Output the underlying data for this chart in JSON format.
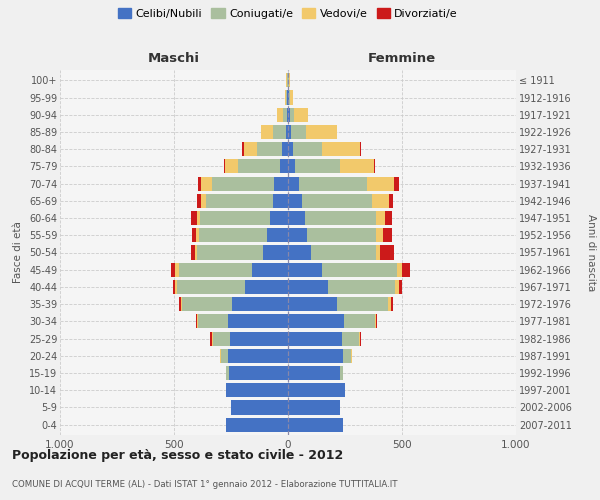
{
  "age_groups": [
    "0-4",
    "5-9",
    "10-14",
    "15-19",
    "20-24",
    "25-29",
    "30-34",
    "35-39",
    "40-44",
    "45-49",
    "50-54",
    "55-59",
    "60-64",
    "65-69",
    "70-74",
    "75-79",
    "80-84",
    "85-89",
    "90-94",
    "95-99",
    "100+"
  ],
  "birth_years": [
    "2007-2011",
    "2002-2006",
    "1997-2001",
    "1992-1996",
    "1987-1991",
    "1982-1986",
    "1977-1981",
    "1972-1976",
    "1967-1971",
    "1962-1966",
    "1957-1961",
    "1952-1956",
    "1947-1951",
    "1942-1946",
    "1937-1941",
    "1932-1936",
    "1927-1931",
    "1922-1926",
    "1917-1921",
    "1912-1916",
    "≤ 1911"
  ],
  "colors": {
    "celibi": "#4472C4",
    "coniugati": "#AABF9E",
    "vedovi": "#F2C96B",
    "divorziati": "#CC1A1A"
  },
  "legend_labels": [
    "Celibi/Nubili",
    "Coniugati/e",
    "Vedovi/e",
    "Divorziati/e"
  ],
  "maschi": {
    "celibi": [
      270,
      250,
      270,
      260,
      265,
      255,
      265,
      245,
      190,
      160,
      110,
      90,
      80,
      65,
      60,
      35,
      25,
      10,
      5,
      3,
      2
    ],
    "coniugati": [
      0,
      0,
      0,
      10,
      30,
      75,
      130,
      220,
      295,
      320,
      290,
      300,
      305,
      295,
      275,
      185,
      110,
      55,
      15,
      4,
      2
    ],
    "vedovi": [
      0,
      0,
      0,
      0,
      5,
      5,
      5,
      5,
      10,
      15,
      10,
      12,
      15,
      20,
      45,
      55,
      60,
      55,
      30,
      8,
      3
    ],
    "divorziati": [
      0,
      0,
      0,
      0,
      0,
      5,
      5,
      10,
      10,
      20,
      15,
      20,
      25,
      20,
      15,
      5,
      5,
      0,
      0,
      0,
      0
    ]
  },
  "femmine": {
    "nubili": [
      240,
      230,
      250,
      230,
      240,
      235,
      245,
      215,
      175,
      150,
      100,
      85,
      75,
      60,
      50,
      30,
      20,
      12,
      8,
      3,
      2
    ],
    "coniugate": [
      0,
      0,
      0,
      10,
      35,
      75,
      135,
      225,
      295,
      330,
      285,
      300,
      310,
      310,
      295,
      200,
      130,
      65,
      20,
      5,
      2
    ],
    "vedove": [
      0,
      0,
      0,
      0,
      5,
      5,
      5,
      10,
      15,
      20,
      20,
      30,
      40,
      75,
      120,
      145,
      165,
      140,
      60,
      15,
      5
    ],
    "divorziate": [
      0,
      0,
      0,
      0,
      0,
      5,
      5,
      10,
      15,
      35,
      60,
      40,
      30,
      15,
      20,
      8,
      5,
      0,
      0,
      0,
      0
    ]
  },
  "title": "Popolazione per età, sesso e stato civile - 2012",
  "subtitle": "COMUNE DI ACQUI TERME (AL) - Dati ISTAT 1° gennaio 2012 - Elaborazione TUTTITALIA.IT",
  "xlabel_left": "Maschi",
  "xlabel_right": "Femmine",
  "ylabel_left": "Fasce di età",
  "ylabel_right": "Anni di nascita",
  "xlim": 1000,
  "xticklabels": [
    "1.000",
    "500",
    "0",
    "500",
    "1.000"
  ]
}
